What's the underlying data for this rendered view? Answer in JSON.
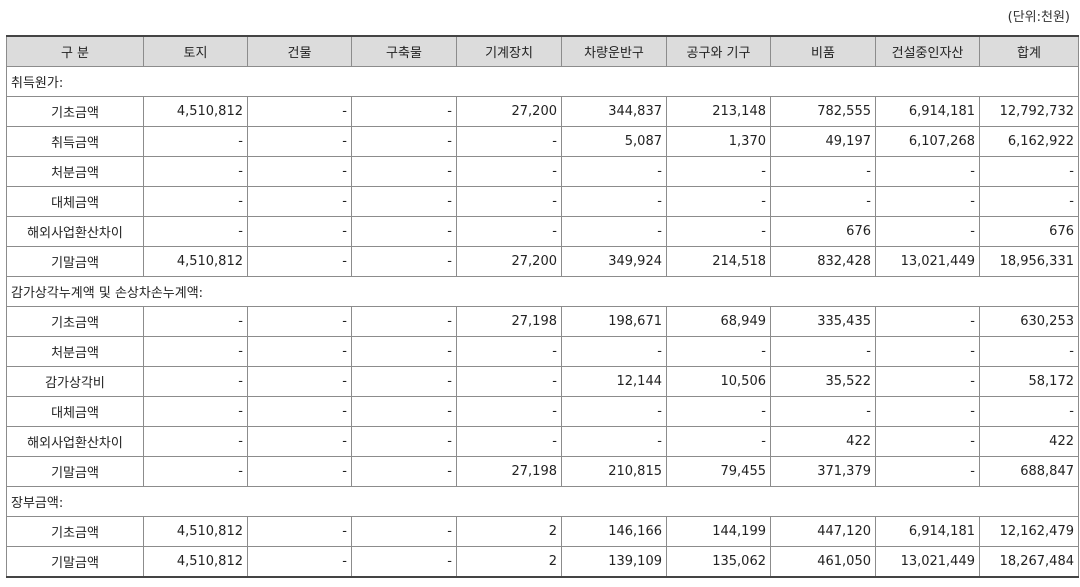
{
  "unit_label": "(단위:천원)",
  "headers": [
    "구 분",
    "토지",
    "건물",
    "구축물",
    "기계장치",
    "차량운반구",
    "공구와 기구",
    "비품",
    "건설중인자산",
    "합계"
  ],
  "rows": [
    {
      "type": "section",
      "label": "취득원가:"
    },
    {
      "type": "data",
      "label": "기초금액",
      "values": [
        "4,510,812",
        "-",
        "-",
        "27,200",
        "344,837",
        "213,148",
        "782,555",
        "6,914,181",
        "12,792,732"
      ]
    },
    {
      "type": "data",
      "label": "취득금액",
      "values": [
        "-",
        "-",
        "-",
        "-",
        "5,087",
        "1,370",
        "49,197",
        "6,107,268",
        "6,162,922"
      ]
    },
    {
      "type": "data",
      "label": "처분금액",
      "values": [
        "-",
        "-",
        "-",
        "-",
        "-",
        "-",
        "-",
        "-",
        "-"
      ]
    },
    {
      "type": "data",
      "label": "대체금액",
      "values": [
        "-",
        "-",
        "-",
        "-",
        "-",
        "-",
        "-",
        "-",
        "-"
      ]
    },
    {
      "type": "data",
      "label": "해외사업환산차이",
      "values": [
        "-",
        "-",
        "-",
        "-",
        "-",
        "-",
        "676",
        "-",
        "676"
      ]
    },
    {
      "type": "data",
      "label": "기말금액",
      "values": [
        "4,510,812",
        "-",
        "-",
        "27,200",
        "349,924",
        "214,518",
        "832,428",
        "13,021,449",
        "18,956,331"
      ]
    },
    {
      "type": "section",
      "label": "감가상각누계액 및 손상차손누계액:"
    },
    {
      "type": "data",
      "label": "기초금액",
      "values": [
        "-",
        "-",
        "-",
        "27,198",
        "198,671",
        "68,949",
        "335,435",
        "-",
        "630,253"
      ]
    },
    {
      "type": "data",
      "label": "처분금액",
      "values": [
        "-",
        "-",
        "-",
        "-",
        "-",
        "-",
        "-",
        "-",
        "-"
      ]
    },
    {
      "type": "data",
      "label": "감가상각비",
      "values": [
        "-",
        "-",
        "-",
        "-",
        "12,144",
        "10,506",
        "35,522",
        "-",
        "58,172"
      ]
    },
    {
      "type": "data",
      "label": "대체금액",
      "values": [
        "-",
        "-",
        "-",
        "-",
        "-",
        "-",
        "-",
        "-",
        "-"
      ]
    },
    {
      "type": "data",
      "label": "해외사업환산차이",
      "values": [
        "-",
        "-",
        "-",
        "-",
        "-",
        "-",
        "422",
        "-",
        "422"
      ]
    },
    {
      "type": "data",
      "label": "기말금액",
      "values": [
        "-",
        "-",
        "-",
        "27,198",
        "210,815",
        "79,455",
        "371,379",
        "-",
        "688,847"
      ]
    },
    {
      "type": "section",
      "label": "장부금액:"
    },
    {
      "type": "data",
      "label": "기초금액",
      "values": [
        "4,510,812",
        "-",
        "-",
        "2",
        "146,166",
        "144,199",
        "447,120",
        "6,914,181",
        "12,162,479"
      ]
    },
    {
      "type": "data",
      "label": "기말금액",
      "values": [
        "4,510,812",
        "-",
        "-",
        "2",
        "139,109",
        "135,062",
        "461,050",
        "13,021,449",
        "18,267,484"
      ]
    }
  ]
}
